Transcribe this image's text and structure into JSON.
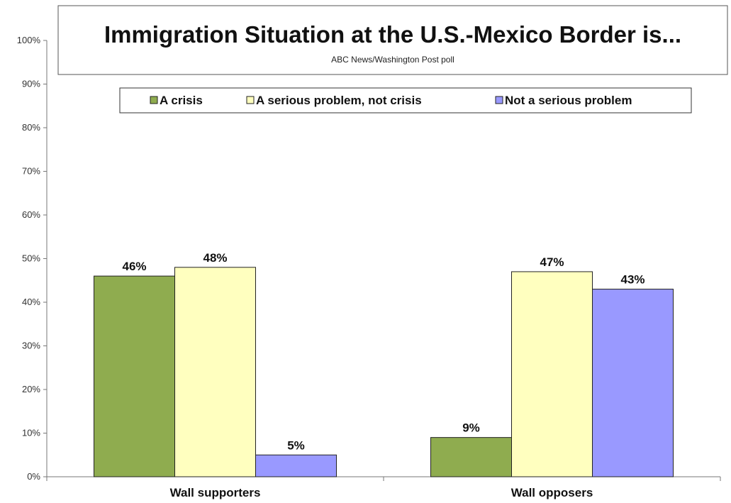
{
  "chart_data": {
    "type": "bar",
    "title": "Immigration Situation at the U.S.-Mexico Border is...",
    "subtitle": "ABC News/Washington  Post poll",
    "categories": [
      "Wall supporters",
      "Wall opposers"
    ],
    "series": [
      {
        "name": "A crisis",
        "values": [
          46,
          9
        ],
        "labels": [
          "46%",
          "9%"
        ],
        "color": "#8fac4f"
      },
      {
        "name": "A serious problem, not crisis",
        "values": [
          48,
          47
        ],
        "labels": [
          "48%",
          "47%"
        ],
        "color": "#ffffbf"
      },
      {
        "name": "Not a serious problem",
        "values": [
          5,
          43
        ],
        "labels": [
          "5%",
          "43%"
        ],
        "color": "#9999ff"
      }
    ],
    "ylim": [
      0,
      100
    ],
    "yticks": [
      0,
      10,
      20,
      30,
      40,
      50,
      60,
      70,
      80,
      90,
      100
    ],
    "ytick_labels": [
      "0%",
      "10%",
      "20%",
      "30%",
      "40%",
      "50%",
      "60%",
      "70%",
      "80%",
      "90%",
      "100%"
    ],
    "grid": false,
    "legend_position": "top-center"
  }
}
